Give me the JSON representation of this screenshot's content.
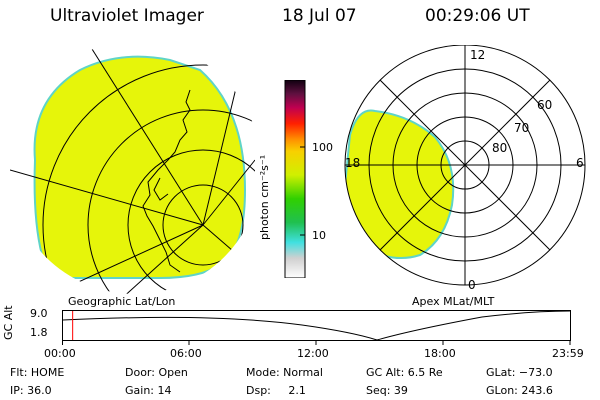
{
  "header": {
    "title": "Ultraviolet Imager",
    "date": "18 Jul 07",
    "time": "00:29:06 UT"
  },
  "colors": {
    "aurora_fill": "#e6f50a",
    "aurora_edge": "#5fd4c8",
    "grid": "#000000",
    "time_marker": "#ff0000"
  },
  "geo_panel": {
    "label": "Geographic Lat/Lon"
  },
  "apex_panel": {
    "label": "Apex MLat/MLT",
    "mlt_labels": {
      "top": "12",
      "left": "18",
      "right": "6",
      "bottom": "0"
    },
    "lat_labels": [
      "60",
      "70",
      "80"
    ]
  },
  "colorbar": {
    "unit": "photon cm⁻²s⁻¹",
    "tick_labels": [
      "100",
      "10"
    ]
  },
  "altitude_plot": {
    "y_label": "GC Alt",
    "y_ticks": [
      "9.0",
      "1.8"
    ],
    "x_ticks": [
      "00:00",
      "06:00",
      "12:00",
      "18:00",
      "23:59"
    ],
    "current_time_fraction": 0.02
  },
  "status": {
    "col1": [
      "Flt: HOME",
      "IP: 36.0"
    ],
    "col2": [
      "Door: Open",
      "Gain: 14"
    ],
    "col3": [
      "Mode: Normal",
      "Dsp:     2.1"
    ],
    "col4": [
      "GC Alt: 6.5 Re",
      "Seq: 39"
    ],
    "col5": [
      "GLat: −73.0",
      "GLon: 243.6"
    ]
  }
}
